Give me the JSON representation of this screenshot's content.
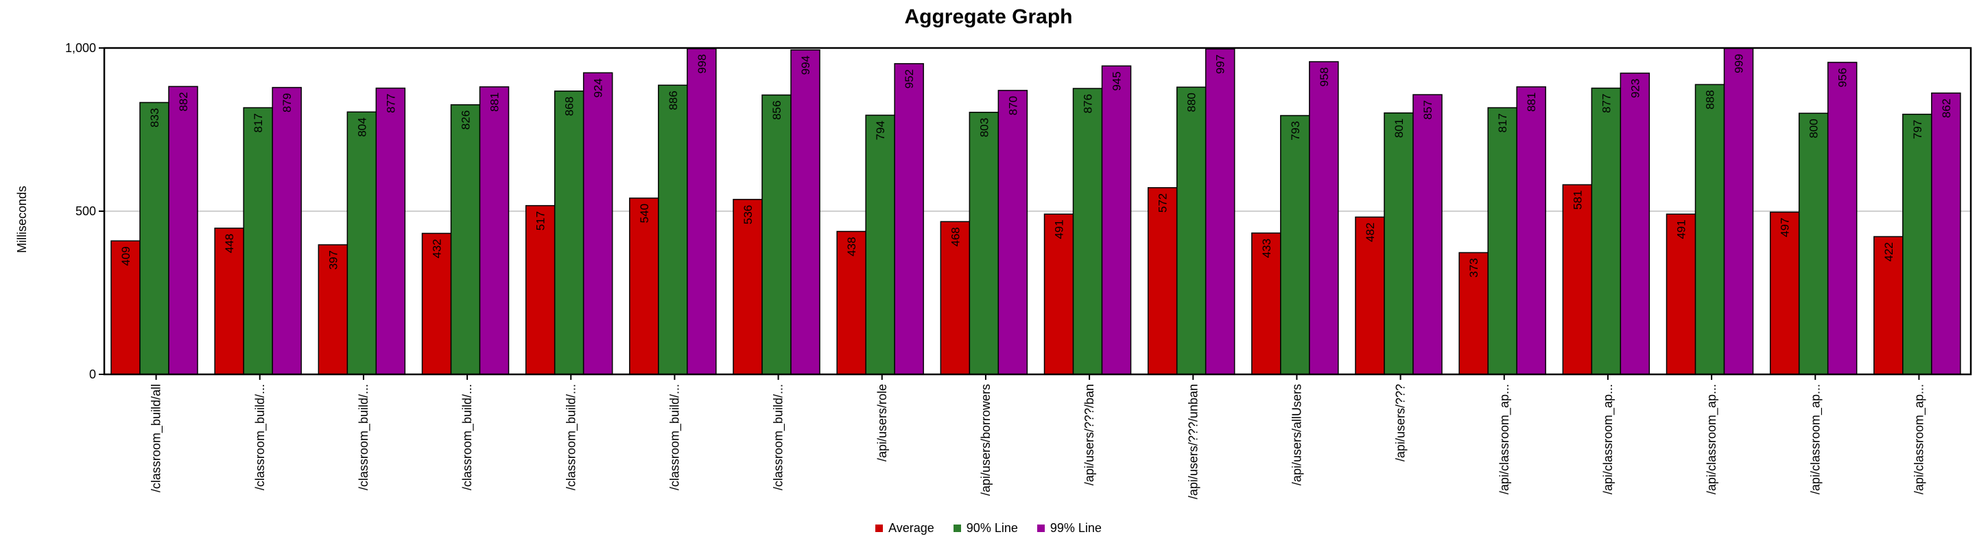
{
  "chart_data": {
    "type": "bar",
    "title": "Aggregate Graph",
    "ylabel": "Milliseconds",
    "xlabel": "",
    "ylim": [
      0,
      1000
    ],
    "yticks": [
      "0",
      "500",
      "1,000"
    ],
    "ytick_values": [
      0,
      500,
      1000
    ],
    "grid": true,
    "legend_position": "bottom",
    "categories": [
      "/classroom_build/all",
      "/classroom_build/...",
      "/classroom_build/...",
      "/classroom_build/...",
      "/classroom_build/...",
      "/classroom_build/...",
      "/classroom_build/...",
      "/api/users/role",
      "/api/users/borrowers",
      "/api/users/???/ban",
      "/api/users/???/unban",
      "/api/users/allUsers",
      "/api/users/???",
      "/api/classroom_ap...",
      "/api/classroom_ap...",
      "/api/classroom_ap...",
      "/api/classroom_ap...",
      "/api/classroom_ap..."
    ],
    "series": [
      {
        "name": "Average",
        "color": "#cc0000",
        "values": [
          409,
          448,
          397,
          432,
          517,
          540,
          536,
          438,
          468,
          491,
          572,
          433,
          482,
          373,
          581,
          491,
          497,
          422
        ]
      },
      {
        "name": "90% Line",
        "color": "#2d7d2d",
        "values": [
          833,
          817,
          804,
          826,
          868,
          886,
          856,
          794,
          803,
          876,
          880,
          793,
          801,
          817,
          877,
          888,
          800,
          797
        ]
      },
      {
        "name": "99% Line",
        "color": "#990099",
        "values": [
          882,
          879,
          877,
          881,
          924,
          998,
          994,
          952,
          870,
          945,
          997,
          958,
          857,
          881,
          923,
          999,
          956,
          862
        ]
      }
    ]
  }
}
